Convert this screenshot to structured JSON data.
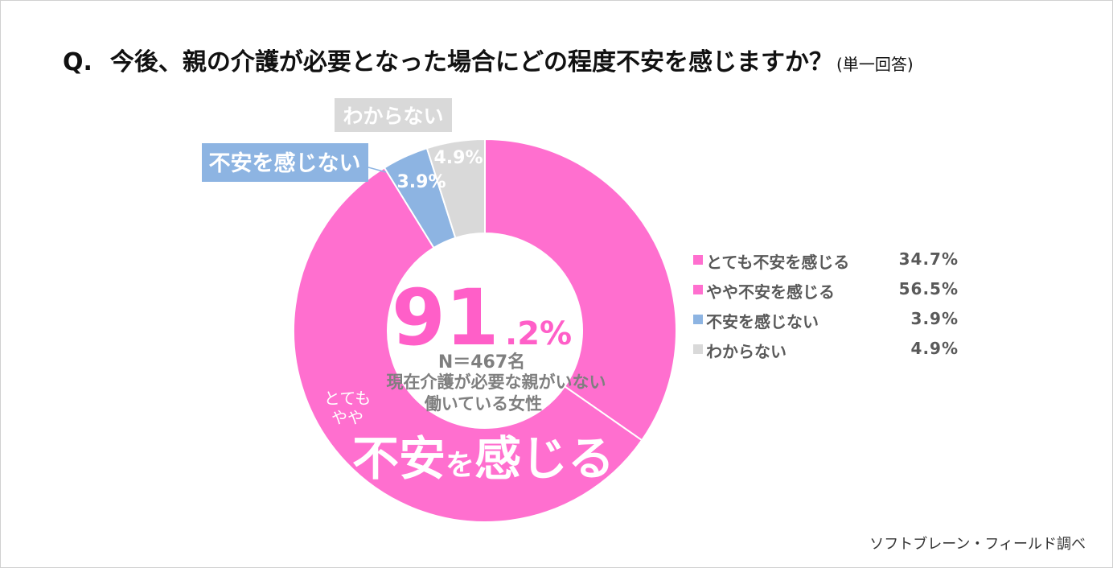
{
  "title": {
    "prefix": "Q.",
    "question": "今後、親の介護が必要となった場合にどの程度不安を感じますか？",
    "note": "(単一回答)"
  },
  "center": {
    "big_number": "91",
    "decimal": ".2%",
    "sample": "N＝467名",
    "description_line1": "現在介護が必要な親がいない",
    "description_line2": "働いている女性"
  },
  "callouts": {
    "small_line1": "とても",
    "small_line2": "やや",
    "big_part1": "不安",
    "big_part2": "を",
    "big_part3": "感じる",
    "not_anxious_label": "不安を感じない",
    "dont_know_label": "わからない"
  },
  "slice_labels": {
    "not_anxious": "3.9%",
    "dont_know": "4.9%"
  },
  "legend": [
    {
      "label": "とても不安を感じる",
      "value": "34.7%"
    },
    {
      "label": "やや不安を感じる",
      "value": "56.5%"
    },
    {
      "label": "不安を感じない",
      "value": "3.9%"
    },
    {
      "label": "わからない",
      "value": "4.9%"
    }
  ],
  "credit": "ソフトブレーン・フィールド調べ",
  "colors": {
    "very_anxious": "#ff6fcf",
    "somewhat_anxious": "#ff6fcf",
    "not_anxious": "#8db4e2",
    "dont_know": "#d9d9d9",
    "big_number": "#ff5fc8",
    "gray_text": "#7f7f7f"
  },
  "chart_data": {
    "type": "pie",
    "donut": true,
    "categories": [
      "とても不安を感じる",
      "やや不安を感じる",
      "不安を感じない",
      "わからない"
    ],
    "values": [
      34.7,
      56.5,
      3.9,
      4.9
    ],
    "unit": "%",
    "combined_anxious": 91.2,
    "n": 467
  }
}
